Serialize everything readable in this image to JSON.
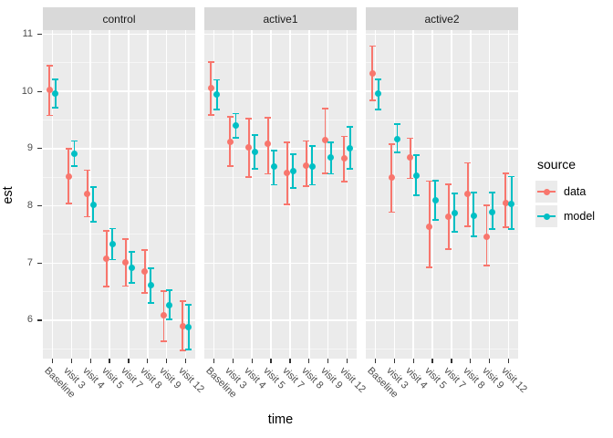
{
  "axes": {
    "y_title": "est",
    "x_title": "time"
  },
  "legend": {
    "title": "source",
    "entries": [
      {
        "label": "data",
        "color": "#F8766D"
      },
      {
        "label": "model",
        "color": "#00BFC4"
      }
    ]
  },
  "colors": {
    "data": "#F8766D",
    "model": "#00BFC4",
    "panel_bg": "#EBEBEB",
    "strip_bg": "#D9D9D9",
    "grid": "#FFFFFF",
    "tick_text": "#4D4D4D",
    "axis_title_text": "#000000"
  },
  "chart_data": {
    "type": "scatter",
    "subtype": "pointrange-with-errorbars",
    "title": "",
    "xlabel": "time",
    "ylabel": "est",
    "categories": [
      "Baseline",
      "visit 3",
      "visit 4",
      "visit 5",
      "visit 7",
      "visit 8",
      "visit 9",
      "visit 12"
    ],
    "yticks": [
      6,
      7,
      8,
      9,
      10,
      11
    ],
    "ylim": [
      5.33,
      11.07
    ],
    "grid": "white-major-minor-on-grey",
    "legend_position": "right",
    "series_names": [
      "data",
      "model"
    ],
    "facets": [
      {
        "label": "control",
        "series": [
          {
            "name": "data",
            "color": "#F8766D",
            "points": [
              [
                10.02,
                9.58,
                10.45
              ],
              [
                8.51,
                8.04,
                9.0
              ],
              [
                8.21,
                7.81,
                8.62
              ],
              [
                7.07,
                6.59,
                7.56
              ],
              [
                7.01,
                6.6,
                7.42
              ],
              [
                6.85,
                6.48,
                7.22
              ],
              [
                6.08,
                5.64,
                6.51
              ],
              [
                5.9,
                5.47,
                6.33
              ]
            ]
          },
          {
            "name": "model",
            "color": "#00BFC4",
            "points": [
              [
                9.96,
                9.71,
                10.21
              ],
              [
                8.91,
                8.69,
                9.13
              ],
              [
                8.02,
                7.72,
                8.32
              ],
              [
                7.33,
                7.06,
                7.6
              ],
              [
                6.92,
                6.65,
                7.19
              ],
              [
                6.61,
                6.3,
                6.91
              ],
              [
                6.27,
                6.02,
                6.52
              ],
              [
                5.88,
                5.49,
                6.27
              ]
            ]
          }
        ]
      },
      {
        "label": "active1",
        "series": [
          {
            "name": "data",
            "color": "#F8766D",
            "points": [
              [
                10.05,
                9.59,
                10.51
              ],
              [
                9.12,
                8.69,
                9.55
              ],
              [
                9.02,
                8.51,
                9.52
              ],
              [
                9.08,
                8.56,
                9.54
              ],
              [
                8.57,
                8.03,
                9.11
              ],
              [
                8.7,
                8.35,
                9.13
              ],
              [
                9.15,
                8.57,
                9.7
              ],
              [
                8.83,
                8.43,
                9.21
              ]
            ]
          },
          {
            "name": "model",
            "color": "#00BFC4",
            "points": [
              [
                9.94,
                9.69,
                10.2
              ],
              [
                9.4,
                9.19,
                9.61
              ],
              [
                8.94,
                8.65,
                9.24
              ],
              [
                8.68,
                8.37,
                8.97
              ],
              [
                8.61,
                8.31,
                8.9
              ],
              [
                8.68,
                8.37,
                9.04
              ],
              [
                8.84,
                8.56,
                9.11
              ],
              [
                9.01,
                8.65,
                9.38
              ]
            ]
          }
        ]
      },
      {
        "label": "active2",
        "series": [
          {
            "name": "data",
            "color": "#F8766D",
            "points": [
              [
                10.31,
                9.84,
                10.79
              ],
              [
                8.49,
                7.89,
                9.08
              ],
              [
                8.84,
                8.48,
                9.18
              ],
              [
                7.63,
                6.93,
                8.43
              ],
              [
                7.81,
                7.25,
                8.37
              ],
              [
                8.21,
                7.64,
                8.75
              ],
              [
                7.46,
                6.96,
                8.01
              ],
              [
                8.05,
                7.63,
                8.57
              ]
            ]
          },
          {
            "name": "model",
            "color": "#00BFC4",
            "points": [
              [
                9.96,
                9.69,
                10.21
              ],
              [
                9.17,
                8.93,
                9.42
              ],
              [
                8.53,
                8.19,
                8.88
              ],
              [
                8.1,
                7.76,
                8.44
              ],
              [
                7.87,
                7.55,
                8.22
              ],
              [
                7.82,
                7.47,
                8.23
              ],
              [
                7.89,
                7.59,
                8.23
              ],
              [
                8.04,
                7.59,
                8.51
              ]
            ]
          }
        ]
      }
    ]
  }
}
